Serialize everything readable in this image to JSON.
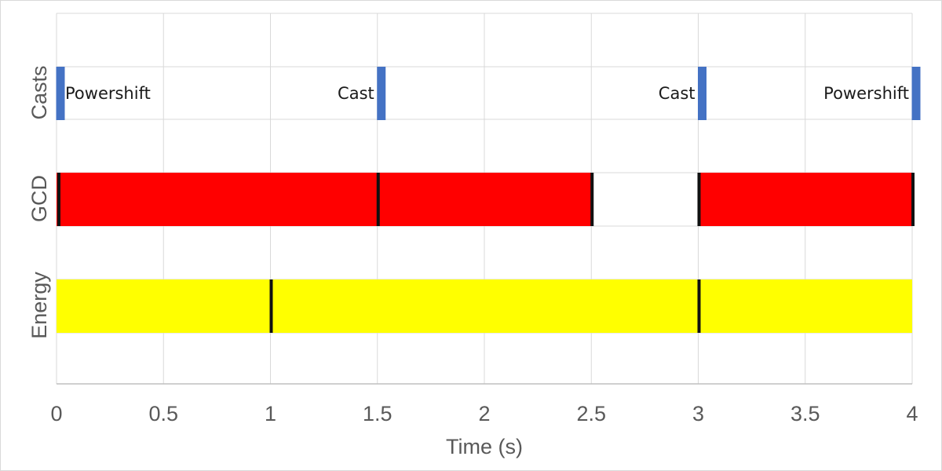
{
  "chart_data": {
    "type": "timeline",
    "xlabel": "Time (s)",
    "xlim": [
      0,
      4
    ],
    "xticks": [
      "0",
      "0.5",
      "1",
      "1.5",
      "2",
      "2.5",
      "3",
      "3.5",
      "4"
    ],
    "xtick_values": [
      0,
      0.5,
      1,
      1.5,
      2,
      2.5,
      3,
      3.5,
      4
    ],
    "lanes": [
      {
        "name": "Casts",
        "events": [
          {
            "t": 0,
            "label": "Powershift"
          },
          {
            "t": 1.5,
            "label": "Cast"
          },
          {
            "t": 3,
            "label": "Cast"
          },
          {
            "t": 4,
            "label": "Powershift"
          }
        ]
      },
      {
        "name": "GCD",
        "segments": [
          {
            "start": 0,
            "end": 1.5
          },
          {
            "start": 1.5,
            "end": 2.5
          },
          {
            "start": 3,
            "end": 4
          }
        ]
      },
      {
        "name": "Energy",
        "segments": [
          {
            "start": 0,
            "end": 1
          },
          {
            "start": 1,
            "end": 3
          },
          {
            "start": 3,
            "end": 4
          }
        ]
      }
    ],
    "colors": {
      "casts": "#4472c4",
      "gcd": "#ff0000",
      "energy": "#ffff00",
      "divider": "#111111",
      "grid": "#d9d9d9",
      "axis": "#bfbfbf"
    }
  }
}
